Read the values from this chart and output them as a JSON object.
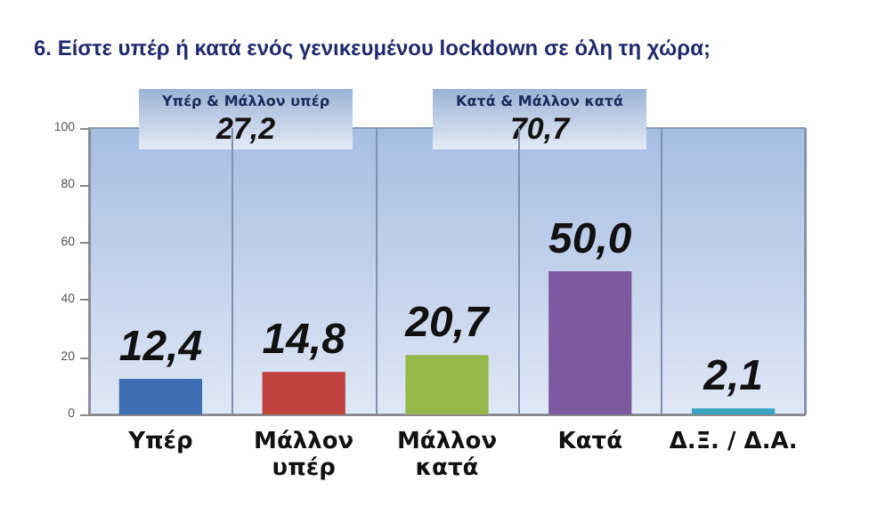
{
  "chart_data": {
    "type": "bar",
    "title": "6. Είστε υπέρ ή κατά ενός γενικευμένου lockdown σε όλη τη χώρα;",
    "categories": [
      "Υπέρ",
      "Μάλλον\nυπέρ",
      "Μάλλον\nκατά",
      "Κατά",
      "Δ.Ξ. / Δ.Α."
    ],
    "values": [
      12.4,
      14.8,
      20.7,
      50.0,
      2.1
    ],
    "colors": [
      "#3f6fb3",
      "#c0413d",
      "#94b94a",
      "#7d5aa0",
      "#3aa3c3"
    ],
    "value_labels": [
      "12,4",
      "14,8",
      "20,7",
      "50,0",
      "2,1"
    ],
    "ylim": [
      0,
      100
    ],
    "yticks": [
      0,
      20,
      40,
      60,
      80,
      100
    ],
    "grid": "x",
    "annotations": [
      {
        "text": "Υπέρ & Μάλλον υπέρ"
      },
      {
        "text": "27,2"
      },
      {
        "text": "Κατά & Μάλλον κατά"
      },
      {
        "text": "70,7"
      }
    ]
  }
}
